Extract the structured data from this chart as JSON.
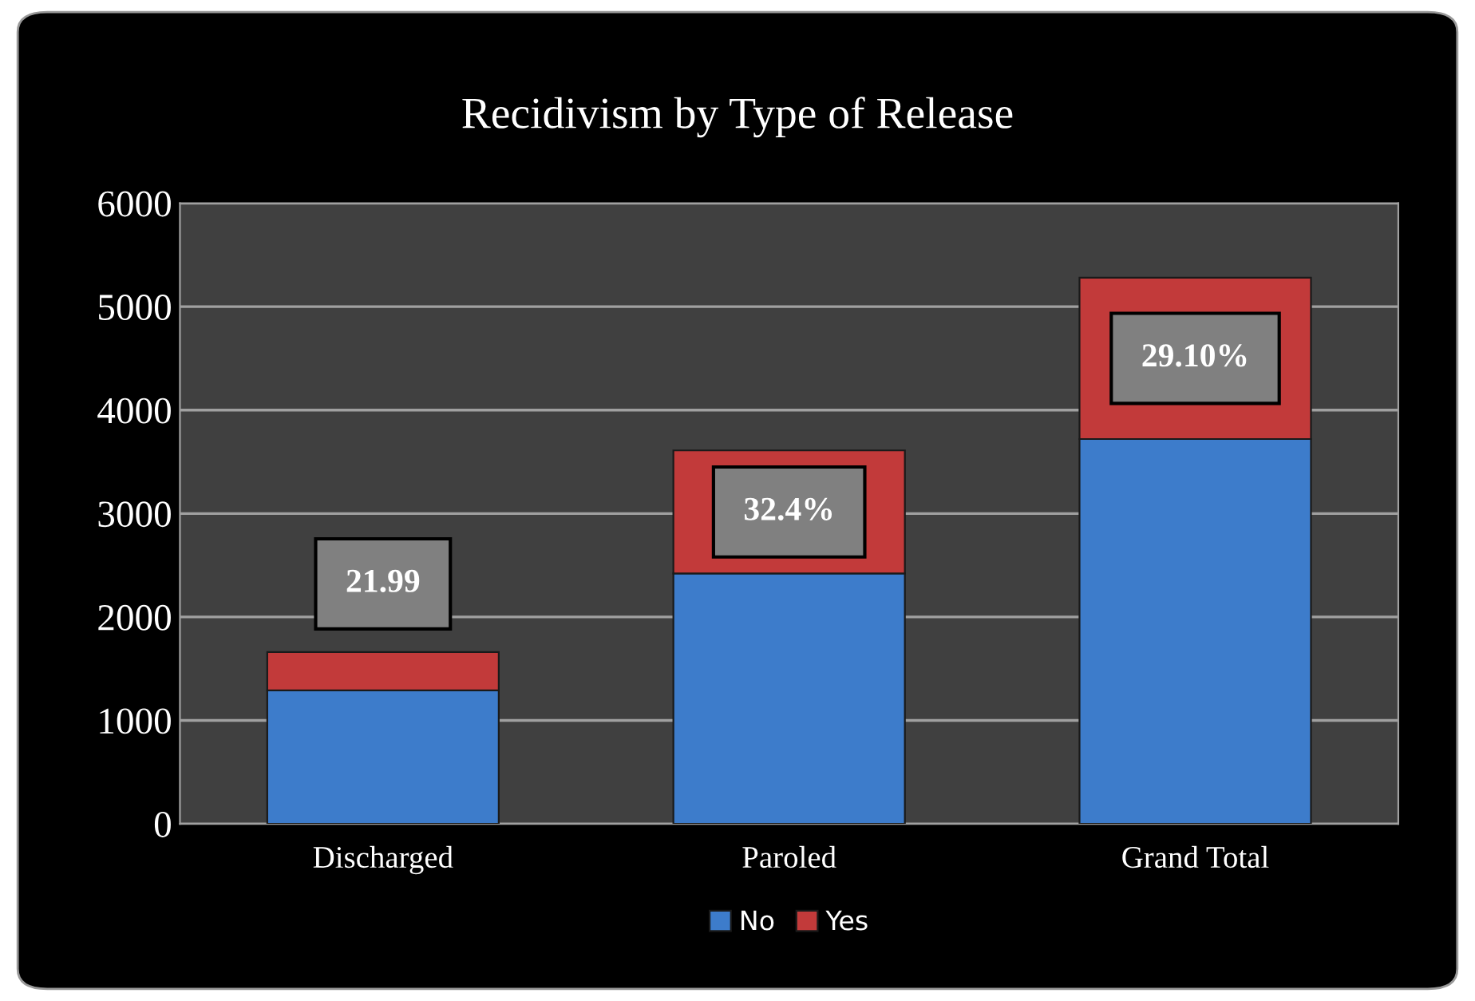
{
  "chart_data": {
    "type": "bar",
    "title": "Recidivism by Type of Release",
    "categories": [
      "Discharged",
      "Paroled",
      "Grand Total"
    ],
    "stacked": true,
    "series": [
      {
        "name": "No",
        "color": "#3d7ccb",
        "values": [
          1290,
          2420,
          3720
        ]
      },
      {
        "name": "Yes",
        "color": "#c23a3a",
        "values": [
          370,
          1190,
          1560
        ]
      }
    ],
    "ylim": [
      0,
      6000
    ],
    "yticks": [
      0,
      1000,
      2000,
      3000,
      4000,
      5000,
      6000
    ],
    "grid": "y",
    "legend": "bottom",
    "annotations": [
      "21.99",
      "32.4%",
      "29.10%"
    ]
  }
}
